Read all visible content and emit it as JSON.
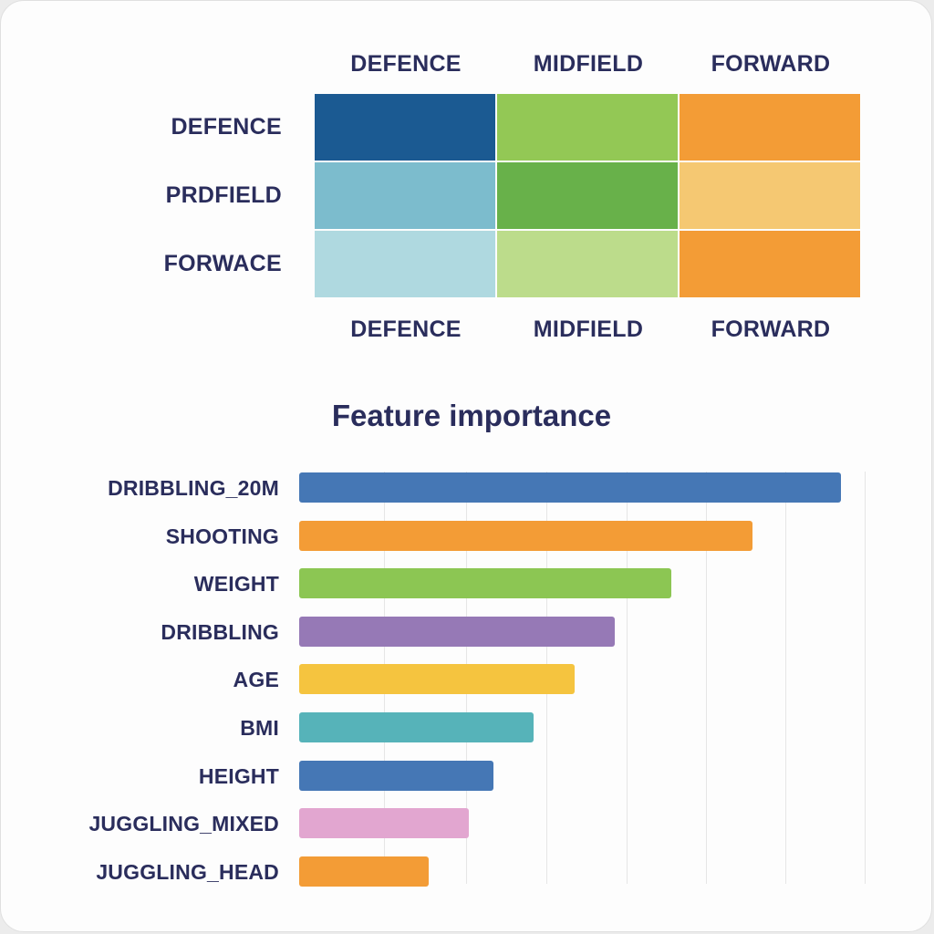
{
  "chart_data": [
    {
      "type": "heatmap",
      "columns_top": [
        "DEFENCE",
        "MIDFIELD",
        "FORWARD"
      ],
      "columns_bottom": [
        "DEFENCE",
        "MIDFIELD",
        "FORWARD"
      ],
      "rows": [
        "DEFENCE",
        "PRDFIELD",
        "FORWACE"
      ],
      "cell_colors": [
        [
          "#1b5a92",
          "#93c855",
          "#f39c36"
        ],
        [
          "#7cbccd",
          "#68b14a",
          "#f5c872"
        ],
        [
          "#afd9e0",
          "#bcdc8b",
          "#f39c36"
        ]
      ]
    },
    {
      "type": "bar",
      "orientation": "horizontal",
      "title": "Feature importance",
      "categories": [
        "DRIBBLING_20M",
        "SHOOTING",
        "WEIGHT",
        "DRIBBLING",
        "AGE",
        "BMI",
        "HEIGHT",
        "JUGGLING_MIXED",
        "JUGGLING_HEAD"
      ],
      "values": [
        0.67,
        0.56,
        0.46,
        0.39,
        0.34,
        0.29,
        0.24,
        0.21,
        0.16
      ],
      "xlim": [
        0,
        0.7
      ],
      "grid": true,
      "colors": [
        "#4577b5",
        "#f39c36",
        "#8cc653",
        "#9679b6",
        "#f5c43f",
        "#56b3b9",
        "#4577b5",
        "#e2a6d0",
        "#f39c36"
      ]
    }
  ]
}
